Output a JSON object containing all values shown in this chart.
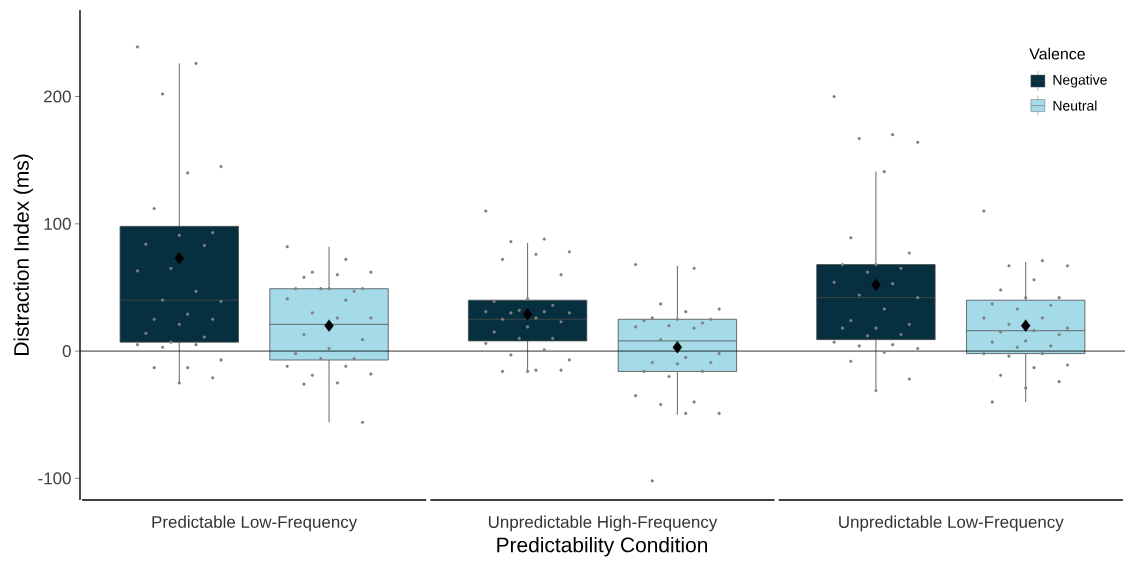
{
  "chart_data": {
    "type": "box",
    "xlabel": "Predictability Condition",
    "ylabel": "Distraction Index (ms)",
    "legend_title": "Valence",
    "legend": "top right",
    "categories": [
      "Predictable Low-Frequency",
      "Unpredictable High-Frequency",
      "Unpredictable Low-Frequency"
    ],
    "ylim": [
      -117,
      268
    ],
    "yticks": [
      -100,
      0,
      100,
      200
    ],
    "ref_lines": [
      {
        "axis": "y",
        "value": 0,
        "color": "#000000"
      }
    ],
    "series": [
      {
        "name": "Negative",
        "color": "#06303f",
        "boxes": [
          {
            "low": -25,
            "q1": 7,
            "median": 40,
            "q3": 98,
            "high": 226,
            "mean": 73
          },
          {
            "low": -16,
            "q1": 8,
            "median": 25,
            "q3": 40,
            "high": 85,
            "mean": 29
          },
          {
            "low": -30,
            "q1": 9,
            "median": 42,
            "q3": 68,
            "high": 141,
            "mean": 52
          }
        ]
      },
      {
        "name": "Neutral",
        "color": "#a5dbe8",
        "boxes": [
          {
            "low": -56,
            "q1": -7,
            "median": 21,
            "q3": 49,
            "high": 82,
            "mean": 20
          },
          {
            "low": -50,
            "q1": -16,
            "median": 8,
            "q3": 25,
            "high": 67,
            "mean": 3
          },
          {
            "low": -40,
            "q1": -2,
            "median": 16,
            "q3": 40,
            "high": 70,
            "mean": 20
          }
        ]
      },
      {
        "type": "scatter",
        "color": "#808080",
        "x": [
          "Predictable Low-Frequency",
          "Predictable Low-Frequency",
          "Predictable Low-Frequency",
          "Predictable Low-Frequency",
          "Predictable Low-Frequency",
          "Predictable Low-Frequency",
          "Predictable Low-Frequency",
          "Predictable Low-Frequency",
          "Predictable Low-Frequency",
          "Predictable Low-Frequency",
          "Predictable Low-Frequency",
          "Predictable Low-Frequency",
          "Predictable Low-Frequency",
          "Predictable Low-Frequency",
          "Predictable Low-Frequency",
          "Predictable Low-Frequency",
          "Predictable Low-Frequency",
          "Predictable Low-Frequency",
          "Predictable Low-Frequency",
          "Predictable Low-Frequency",
          "Predictable Low-Frequency",
          "Predictable Low-Frequency",
          "Predictable Low-Frequency",
          "Predictable Low-Frequency",
          "Predictable Low-Frequency",
          "Predictable Low-Frequency",
          "Predictable Low-Frequency",
          "Predictable Low-Frequency",
          "Predictable Low-Frequency",
          "Predictable Low-Frequency",
          "Unpredictable High-Frequency",
          "Unpredictable High-Frequency",
          "Unpredictable High-Frequency",
          "Unpredictable High-Frequency",
          "Unpredictable High-Frequency",
          "Unpredictable High-Frequency",
          "Unpredictable High-Frequency",
          "Unpredictable High-Frequency",
          "Unpredictable High-Frequency",
          "Unpredictable High-Frequency",
          "Unpredictable High-Frequency",
          "Unpredictable High-Frequency",
          "Unpredictable High-Frequency",
          "Unpredictable High-Frequency",
          "Unpredictable High-Frequency",
          "Unpredictable High-Frequency",
          "Unpredictable High-Frequency",
          "Unpredictable High-Frequency",
          "Unpredictable High-Frequency",
          "Unpredictable High-Frequency",
          "Unpredictable High-Frequency",
          "Unpredictable High-Frequency",
          "Unpredictable High-Frequency",
          "Unpredictable High-Frequency",
          "Unpredictable High-Frequency",
          "Unpredictable High-Frequency",
          "Unpredictable High-Frequency",
          "Unpredictable High-Frequency",
          "Unpredictable High-Frequency",
          "Unpredictable High-Frequency",
          "Unpredictable Low-Frequency",
          "Unpredictable Low-Frequency",
          "Unpredictable Low-Frequency",
          "Unpredictable Low-Frequency",
          "Unpredictable Low-Frequency",
          "Unpredictable Low-Frequency",
          "Unpredictable Low-Frequency",
          "Unpredictable Low-Frequency",
          "Unpredictable Low-Frequency",
          "Unpredictable Low-Frequency",
          "Unpredictable Low-Frequency",
          "Unpredictable Low-Frequency",
          "Unpredictable Low-Frequency",
          "Unpredictable Low-Frequency",
          "Unpredictable Low-Frequency",
          "Unpredictable Low-Frequency",
          "Unpredictable Low-Frequency",
          "Unpredictable Low-Frequency",
          "Unpredictable Low-Frequency",
          "Unpredictable Low-Frequency",
          "Unpredictable Low-Frequency",
          "Unpredictable Low-Frequency",
          "Unpredictable Low-Frequency",
          "Unpredictable Low-Frequency",
          "Unpredictable Low-Frequency",
          "Unpredictable Low-Frequency",
          "Unpredictable Low-Frequency",
          "Unpredictable Low-Frequency",
          "Unpredictable Low-Frequency",
          "Unpredictable Low-Frequency"
        ],
        "values": [
          239,
          226,
          202,
          145,
          140,
          112,
          93,
          91,
          84,
          83,
          65,
          63,
          47,
          40,
          39,
          29,
          25,
          25,
          21,
          14,
          11,
          7,
          5,
          5,
          3,
          -7,
          -13,
          -13,
          -21,
          -25,
          110,
          88,
          86,
          78,
          76,
          72,
          60,
          41,
          39,
          36,
          32,
          31,
          31,
          30,
          30,
          26,
          25,
          23,
          19,
          15,
          10,
          10,
          6,
          1,
          -3,
          -7,
          -15,
          -16,
          -15,
          -16,
          200,
          170,
          167,
          164,
          141,
          89,
          77,
          68,
          68,
          65,
          62,
          54,
          53,
          44,
          42,
          33,
          24,
          21,
          18,
          18,
          13,
          12,
          7,
          5,
          4,
          2,
          -1,
          -8,
          -22,
          -31
        ]
      },
      {
        "type": "scatter",
        "color": "#808080",
        "x": [
          "Predictable Low-Frequency",
          "Predictable Low-Frequency",
          "Predictable Low-Frequency",
          "Predictable Low-Frequency",
          "Predictable Low-Frequency",
          "Predictable Low-Frequency",
          "Predictable Low-Frequency",
          "Predictable Low-Frequency",
          "Predictable Low-Frequency",
          "Predictable Low-Frequency",
          "Predictable Low-Frequency",
          "Predictable Low-Frequency",
          "Predictable Low-Frequency",
          "Predictable Low-Frequency",
          "Predictable Low-Frequency",
          "Predictable Low-Frequency",
          "Predictable Low-Frequency",
          "Predictable Low-Frequency",
          "Predictable Low-Frequency",
          "Predictable Low-Frequency",
          "Predictable Low-Frequency",
          "Predictable Low-Frequency",
          "Predictable Low-Frequency",
          "Predictable Low-Frequency",
          "Predictable Low-Frequency",
          "Predictable Low-Frequency",
          "Predictable Low-Frequency",
          "Predictable Low-Frequency",
          "Predictable Low-Frequency",
          "Unpredictable High-Frequency",
          "Unpredictable High-Frequency",
          "Unpredictable High-Frequency",
          "Unpredictable High-Frequency",
          "Unpredictable High-Frequency",
          "Unpredictable High-Frequency",
          "Unpredictable High-Frequency",
          "Unpredictable High-Frequency",
          "Unpredictable High-Frequency",
          "Unpredictable High-Frequency",
          "Unpredictable High-Frequency",
          "Unpredictable High-Frequency",
          "Unpredictable High-Frequency",
          "Unpredictable High-Frequency",
          "Unpredictable High-Frequency",
          "Unpredictable High-Frequency",
          "Unpredictable High-Frequency",
          "Unpredictable High-Frequency",
          "Unpredictable High-Frequency",
          "Unpredictable High-Frequency",
          "Unpredictable High-Frequency",
          "Unpredictable High-Frequency",
          "Unpredictable High-Frequency",
          "Unpredictable High-Frequency",
          "Unpredictable High-Frequency",
          "Unpredictable High-Frequency",
          "Unpredictable High-Frequency",
          "Unpredictable High-Frequency",
          "Unpredictable Low-Frequency",
          "Unpredictable Low-Frequency",
          "Unpredictable Low-Frequency",
          "Unpredictable Low-Frequency",
          "Unpredictable Low-Frequency",
          "Unpredictable Low-Frequency",
          "Unpredictable Low-Frequency",
          "Unpredictable Low-Frequency",
          "Unpredictable Low-Frequency",
          "Unpredictable Low-Frequency",
          "Unpredictable Low-Frequency",
          "Unpredictable Low-Frequency",
          "Unpredictable Low-Frequency",
          "Unpredictable Low-Frequency",
          "Unpredictable Low-Frequency",
          "Unpredictable Low-Frequency",
          "Unpredictable Low-Frequency",
          "Unpredictable Low-Frequency",
          "Unpredictable Low-Frequency",
          "Unpredictable Low-Frequency",
          "Unpredictable Low-Frequency",
          "Unpredictable Low-Frequency",
          "Unpredictable Low-Frequency",
          "Unpredictable Low-Frequency",
          "Unpredictable Low-Frequency",
          "Unpredictable Low-Frequency",
          "Unpredictable Low-Frequency",
          "Unpredictable Low-Frequency",
          "Unpredictable Low-Frequency",
          "Unpredictable Low-Frequency",
          "Unpredictable Low-Frequency"
        ],
        "values": [
          82,
          72,
          62,
          62,
          60,
          58,
          49,
          49,
          49,
          47,
          49,
          41,
          40,
          30,
          26,
          26,
          13,
          9,
          2,
          -2,
          -6,
          -6,
          -12,
          -12,
          -19,
          -18,
          -25,
          -26,
          -56,
          68,
          65,
          37,
          33,
          31,
          26,
          25,
          25,
          24,
          22,
          20,
          19,
          18,
          9,
          -2,
          -5,
          -9,
          -9,
          -10,
          -16,
          -16,
          -20,
          -35,
          -40,
          -42,
          -49,
          -49,
          -102,
          110,
          71,
          67,
          67,
          56,
          48,
          42,
          42,
          37,
          36,
          33,
          26,
          26,
          21,
          18,
          16,
          15,
          13,
          8,
          7,
          4,
          3,
          -2,
          -2,
          -4,
          -11,
          -13,
          -19,
          -24,
          -29,
          -40
        ]
      }
    ]
  }
}
